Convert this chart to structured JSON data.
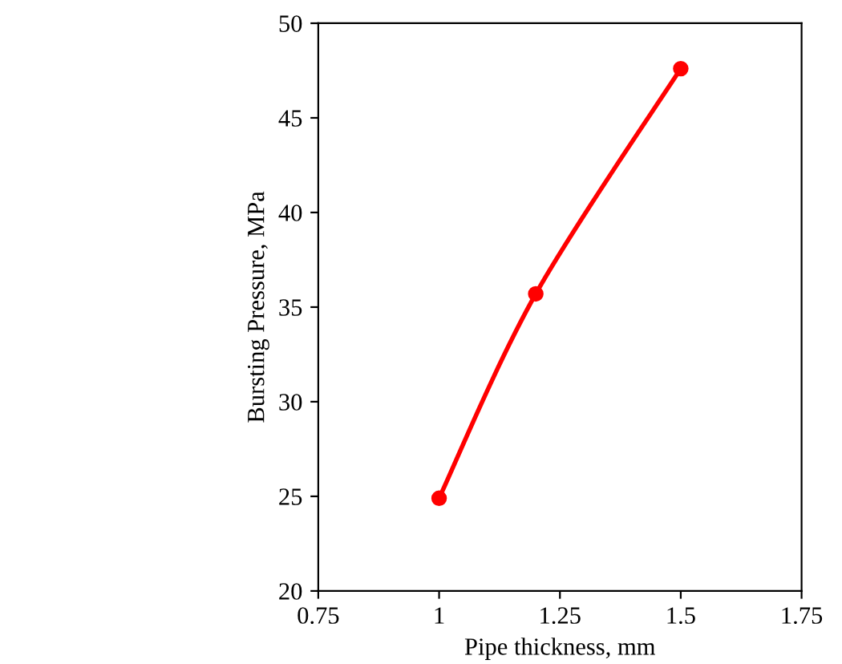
{
  "chart_data": {
    "type": "line",
    "xlabel": "Pipe thickness, mm",
    "ylabel": "Bursting Pressure, MPa",
    "x": [
      1,
      1.2,
      1.5
    ],
    "series": [
      {
        "color": "#ff0000",
        "values": [
          24.9,
          35.7,
          47.6
        ]
      }
    ],
    "xlim": [
      0.75,
      1.75
    ],
    "xticks": [
      0.75,
      1,
      1.25,
      1.5,
      1.75
    ],
    "ylim": [
      20,
      50
    ],
    "yticks": [
      20,
      25,
      30,
      35,
      40,
      45,
      50
    ],
    "marker": "circle",
    "line_style": "solid",
    "grid": false,
    "legend": false
  }
}
